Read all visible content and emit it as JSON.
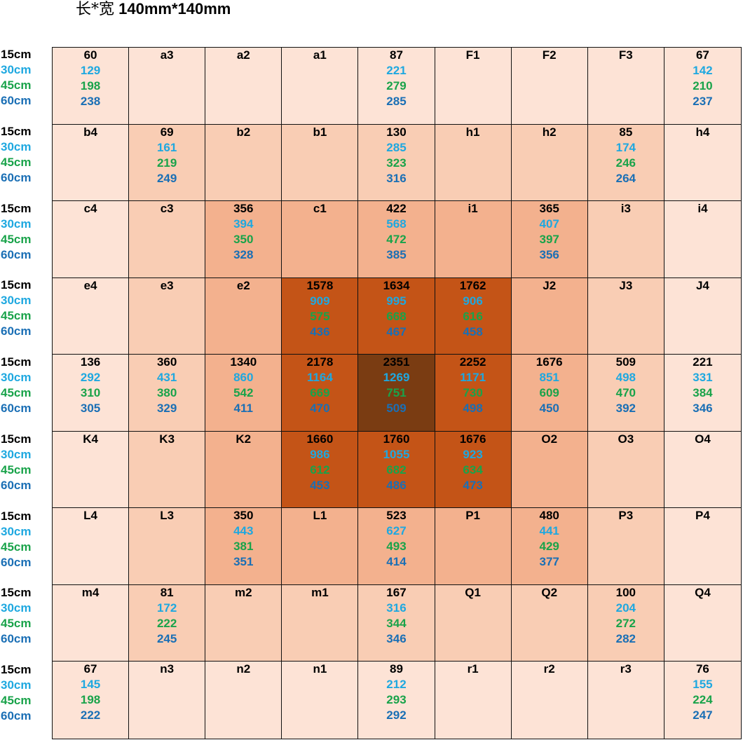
{
  "title": {
    "prefix": "长*宽",
    "dimensions": "140mm*140mm"
  },
  "row_labels": [
    "15cm",
    "30cm",
    "45cm",
    "60cm"
  ],
  "colors": {
    "15cm": "#000000",
    "30cm": "#1ea8e0",
    "45cm": "#19a34a",
    "60cm": "#1a6fb5",
    "gridline": "#111111"
  },
  "heat_colors": {
    "1": "#fde3d6",
    "2": "#f9cdb4",
    "3": "#f3b18e",
    "4": "#c45417",
    "5": "#7a3c12"
  },
  "grid": [
    [
      {
        "v": [
          "60",
          "129",
          "198",
          "238"
        ],
        "h": 1
      },
      {
        "v": [
          "a3"
        ],
        "h": 1
      },
      {
        "v": [
          "a2"
        ],
        "h": 1
      },
      {
        "v": [
          "a1"
        ],
        "h": 1
      },
      {
        "v": [
          "87",
          "221",
          "279",
          "285"
        ],
        "h": 1
      },
      {
        "v": [
          "F1"
        ],
        "h": 1
      },
      {
        "v": [
          "F2"
        ],
        "h": 1
      },
      {
        "v": [
          "F3"
        ],
        "h": 1
      },
      {
        "v": [
          "67",
          "142",
          "210",
          "237"
        ],
        "h": 1
      }
    ],
    [
      {
        "v": [
          "b4"
        ],
        "h": 1
      },
      {
        "v": [
          "69",
          "161",
          "219",
          "249"
        ],
        "h": 2
      },
      {
        "v": [
          "b2"
        ],
        "h": 2
      },
      {
        "v": [
          "b1"
        ],
        "h": 2
      },
      {
        "v": [
          "130",
          "285",
          "323",
          "316"
        ],
        "h": 2
      },
      {
        "v": [
          "h1"
        ],
        "h": 2
      },
      {
        "v": [
          "h2"
        ],
        "h": 2
      },
      {
        "v": [
          "85",
          "174",
          "246",
          "264"
        ],
        "h": 2
      },
      {
        "v": [
          "h4"
        ],
        "h": 1
      }
    ],
    [
      {
        "v": [
          "c4"
        ],
        "h": 1
      },
      {
        "v": [
          "c3"
        ],
        "h": 2
      },
      {
        "v": [
          "356",
          "394",
          "350",
          "328"
        ],
        "h": 3
      },
      {
        "v": [
          "c1"
        ],
        "h": 3
      },
      {
        "v": [
          "422",
          "568",
          "472",
          "385"
        ],
        "h": 3
      },
      {
        "v": [
          "i1"
        ],
        "h": 3
      },
      {
        "v": [
          "365",
          "407",
          "397",
          "356"
        ],
        "h": 3
      },
      {
        "v": [
          "i3"
        ],
        "h": 2
      },
      {
        "v": [
          "i4"
        ],
        "h": 1
      }
    ],
    [
      {
        "v": [
          "e4"
        ],
        "h": 1
      },
      {
        "v": [
          "e3"
        ],
        "h": 2
      },
      {
        "v": [
          "e2"
        ],
        "h": 3
      },
      {
        "v": [
          "1578",
          "909",
          "575",
          "436"
        ],
        "h": 4
      },
      {
        "v": [
          "1634",
          "995",
          "668",
          "467"
        ],
        "h": 4
      },
      {
        "v": [
          "1762",
          "906",
          "616",
          "458"
        ],
        "h": 4
      },
      {
        "v": [
          "J2"
        ],
        "h": 3
      },
      {
        "v": [
          "J3"
        ],
        "h": 2
      },
      {
        "v": [
          "J4"
        ],
        "h": 1
      }
    ],
    [
      {
        "v": [
          "136",
          "292",
          "310",
          "305"
        ],
        "h": 1
      },
      {
        "v": [
          "360",
          "431",
          "380",
          "329"
        ],
        "h": 2
      },
      {
        "v": [
          "1340",
          "860",
          "542",
          "411"
        ],
        "h": 3
      },
      {
        "v": [
          "2178",
          "1164",
          "669",
          "470"
        ],
        "h": 4
      },
      {
        "v": [
          "2351",
          "1269",
          "751",
          "509"
        ],
        "h": 5
      },
      {
        "v": [
          "2252",
          "1171",
          "730",
          "498"
        ],
        "h": 4
      },
      {
        "v": [
          "1676",
          "851",
          "609",
          "450"
        ],
        "h": 3
      },
      {
        "v": [
          "509",
          "498",
          "470",
          "392"
        ],
        "h": 2
      },
      {
        "v": [
          "221",
          "331",
          "384",
          "346"
        ],
        "h": 1
      }
    ],
    [
      {
        "v": [
          "K4"
        ],
        "h": 1
      },
      {
        "v": [
          "K3"
        ],
        "h": 2
      },
      {
        "v": [
          "K2"
        ],
        "h": 3
      },
      {
        "v": [
          "1660",
          "986",
          "612",
          "453"
        ],
        "h": 4
      },
      {
        "v": [
          "1760",
          "1055",
          "682",
          "486"
        ],
        "h": 4
      },
      {
        "v": [
          "1676",
          "923",
          "634",
          "473"
        ],
        "h": 4
      },
      {
        "v": [
          "O2"
        ],
        "h": 3
      },
      {
        "v": [
          "O3"
        ],
        "h": 2
      },
      {
        "v": [
          "O4"
        ],
        "h": 1
      }
    ],
    [
      {
        "v": [
          "L4"
        ],
        "h": 1
      },
      {
        "v": [
          "L3"
        ],
        "h": 2
      },
      {
        "v": [
          "350",
          "443",
          "381",
          "351"
        ],
        "h": 3
      },
      {
        "v": [
          "L1"
        ],
        "h": 3
      },
      {
        "v": [
          "523",
          "627",
          "493",
          "414"
        ],
        "h": 3
      },
      {
        "v": [
          "P1"
        ],
        "h": 3
      },
      {
        "v": [
          "480",
          "441",
          "429",
          "377"
        ],
        "h": 3
      },
      {
        "v": [
          "P3"
        ],
        "h": 2
      },
      {
        "v": [
          "P4"
        ],
        "h": 1
      }
    ],
    [
      {
        "v": [
          "m4"
        ],
        "h": 1
      },
      {
        "v": [
          "81",
          "172",
          "222",
          "245"
        ],
        "h": 2
      },
      {
        "v": [
          "m2"
        ],
        "h": 2
      },
      {
        "v": [
          "m1"
        ],
        "h": 2
      },
      {
        "v": [
          "167",
          "316",
          "344",
          "346"
        ],
        "h": 2
      },
      {
        "v": [
          "Q1"
        ],
        "h": 2
      },
      {
        "v": [
          "Q2"
        ],
        "h": 2
      },
      {
        "v": [
          "100",
          "204",
          "272",
          "282"
        ],
        "h": 2
      },
      {
        "v": [
          "Q4"
        ],
        "h": 1
      }
    ],
    [
      {
        "v": [
          "67",
          "145",
          "198",
          "222"
        ],
        "h": 1
      },
      {
        "v": [
          "n3"
        ],
        "h": 1
      },
      {
        "v": [
          "n2"
        ],
        "h": 1
      },
      {
        "v": [
          "n1"
        ],
        "h": 1
      },
      {
        "v": [
          "89",
          "212",
          "293",
          "292"
        ],
        "h": 1
      },
      {
        "v": [
          "r1"
        ],
        "h": 1
      },
      {
        "v": [
          "r2"
        ],
        "h": 1
      },
      {
        "v": [
          "r3"
        ],
        "h": 1
      },
      {
        "v": [
          "76",
          "155",
          "224",
          "247"
        ],
        "h": 1
      }
    ]
  ]
}
